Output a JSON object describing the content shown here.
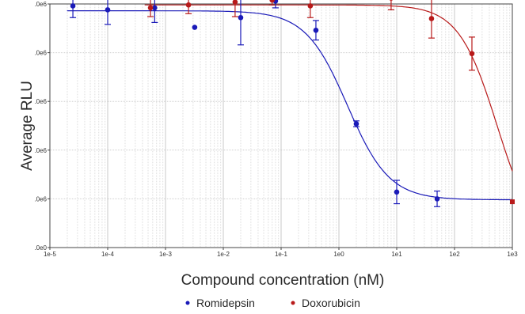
{
  "chart_data": {
    "type": "scatter",
    "title": "",
    "xlabel": "Compound concentration (nM)",
    "ylabel": "Average RLU",
    "x_scale": "log",
    "xlim": [
      1e-05,
      1000
    ],
    "ylim": [
      0,
      5
    ],
    "x_ticks": [
      1e-05,
      0.0001,
      0.001,
      0.01,
      0.1,
      1,
      10,
      100,
      1000
    ],
    "x_tick_labels": [
      "1e-5",
      "1e-4",
      "1e-3",
      "1e-2",
      "1e-1",
      "1e0",
      "1e1",
      "1e2",
      "1e3"
    ],
    "y_ticks": [
      0,
      1,
      2,
      3,
      4,
      5
    ],
    "y_tick_labels": [
      ".0e0",
      ".0e6",
      ".0e6",
      ".0e6",
      ".0e6",
      ".0e6"
    ],
    "grid": true,
    "legend_position": "bottom-center",
    "series": [
      {
        "name": "Romidepsin",
        "color": "#1a1ab8",
        "points": [
          {
            "x": 2.5e-05,
            "y": 4.96,
            "err": 0.24
          },
          {
            "x": 0.0001,
            "y": 4.88,
            "err": 0.3
          },
          {
            "x": 0.00065,
            "y": 4.92,
            "err": 0.3
          },
          {
            "x": 0.0032,
            "y": 4.52,
            "err": 0
          },
          {
            "x": 0.02,
            "y": 4.72,
            "err": 0.56
          },
          {
            "x": 0.08,
            "y": 5.06,
            "err": 0.14
          },
          {
            "x": 0.4,
            "y": 4.46,
            "err": 0.2
          },
          {
            "x": 2,
            "y": 2.54,
            "err": 0.06
          },
          {
            "x": 10,
            "y": 1.14,
            "err": 0.24
          },
          {
            "x": 50,
            "y": 1.0,
            "err": 0.16
          }
        ],
        "fit": {
          "top": 4.86,
          "bottom": 0.98,
          "ec50": 1.4,
          "hill": 1.2
        }
      },
      {
        "name": "Doxorubicin",
        "color": "#b81a1a",
        "points": [
          {
            "x": 0.00055,
            "y": 4.92,
            "err": 0.18
          },
          {
            "x": 0.0025,
            "y": 4.98,
            "err": 0.18
          },
          {
            "x": 0.016,
            "y": 5.04,
            "err": 0.3
          },
          {
            "x": 0.07,
            "y": 5.08,
            "err": 0.1
          },
          {
            "x": 0.32,
            "y": 4.96,
            "err": 0.24
          },
          {
            "x": 1.6,
            "y": 5.38,
            "err": 0.14
          },
          {
            "x": 8,
            "y": 5.12,
            "err": 0.24
          },
          {
            "x": 40,
            "y": 4.7,
            "err": 0.4
          },
          {
            "x": 200,
            "y": 3.98,
            "err": 0.34
          },
          {
            "x": 1000,
            "y": 0.94,
            "err": 0
          }
        ],
        "fit": {
          "top": 4.98,
          "bottom": 0,
          "ec50": 550,
          "hill": 1.3
        }
      }
    ]
  }
}
